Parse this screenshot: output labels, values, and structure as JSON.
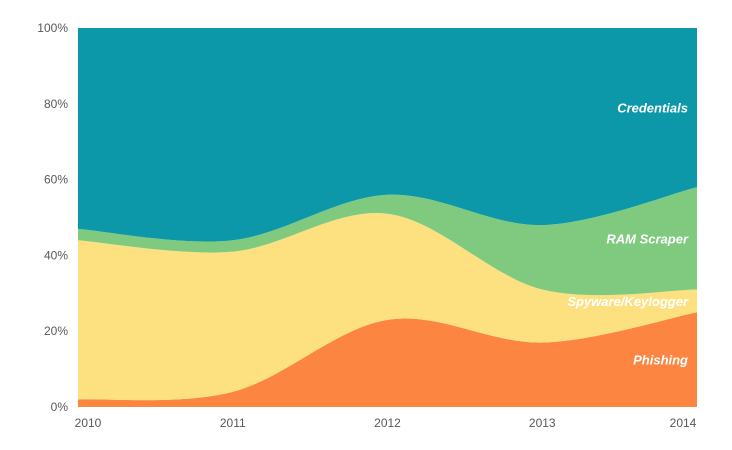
{
  "chart_data": {
    "type": "area",
    "variant": "stacked-100-percent",
    "title": "",
    "xlabel": "",
    "ylabel": "",
    "grid": false,
    "legend_position": "inline-right",
    "ylim": [
      0,
      100
    ],
    "x": [
      2010,
      2011,
      2012,
      2013,
      2014
    ],
    "x_tick_labels": [
      "2010",
      "2011",
      "2012",
      "2013",
      "2014"
    ],
    "y_ticks": [
      0,
      20,
      40,
      60,
      80,
      100
    ],
    "y_tick_labels": [
      "0%",
      "20%",
      "40%",
      "60%",
      "80%",
      "100%"
    ],
    "series": [
      {
        "name": "Phishing",
        "color": "#fd8542",
        "values": [
          2,
          4,
          23,
          17,
          25
        ]
      },
      {
        "name": "Spyware/Keylogger",
        "color": "#fde181",
        "values": [
          42,
          37,
          28,
          14,
          6
        ]
      },
      {
        "name": "RAM Scraper",
        "color": "#7fca7e",
        "values": [
          3,
          3,
          5,
          17,
          27
        ]
      },
      {
        "name": "Credentials",
        "color": "#0d98a9",
        "values": [
          53,
          56,
          44,
          52,
          42
        ]
      }
    ],
    "series_label_color": "#ffffff",
    "axis_text_color": "#58595b"
  }
}
